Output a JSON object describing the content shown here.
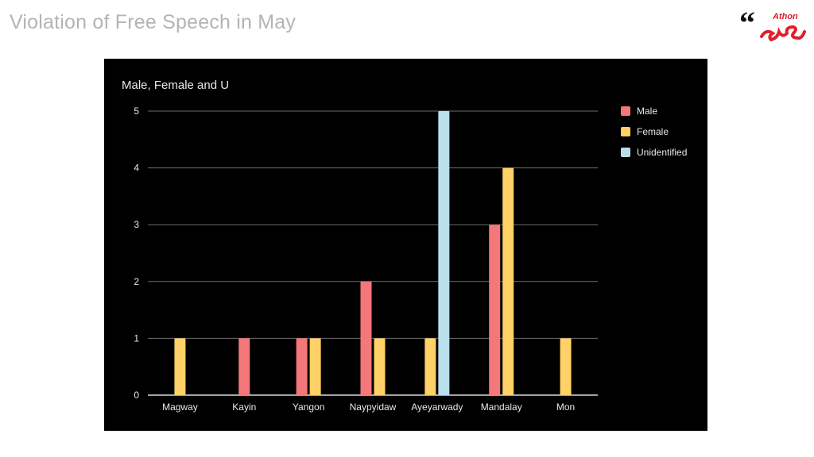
{
  "slide": {
    "title": "Violation of Free Speech in May",
    "logo_text": "Athon"
  },
  "colors": {
    "male": "#f4777a",
    "female": "#ffd166",
    "unidentified": "#b9dfed",
    "panel_background": "#000000",
    "slide_title": "#b4b4b4",
    "logo_red": "#e0202a"
  },
  "chart_data": {
    "type": "bar",
    "title": "Male, Female and U",
    "xlabel": "",
    "ylabel": "",
    "ylim": [
      0,
      5
    ],
    "yticks": [
      0,
      1,
      2,
      3,
      4,
      5
    ],
    "grid": true,
    "legend_position": "right",
    "categories": [
      "Magway",
      "Kayin",
      "Yangon",
      "Naypyidaw",
      "Ayeyarwady",
      "Mandalay",
      "Mon"
    ],
    "series": [
      {
        "name": "Male",
        "color": "#f4777a",
        "values": [
          0,
          1,
          1,
          2,
          0,
          3,
          0
        ]
      },
      {
        "name": "Female",
        "color": "#ffd166",
        "values": [
          1,
          0,
          1,
          1,
          1,
          4,
          1
        ]
      },
      {
        "name": "Unidentified",
        "color": "#b9dfed",
        "values": [
          0,
          0,
          0,
          0,
          5,
          0,
          0
        ]
      }
    ]
  }
}
